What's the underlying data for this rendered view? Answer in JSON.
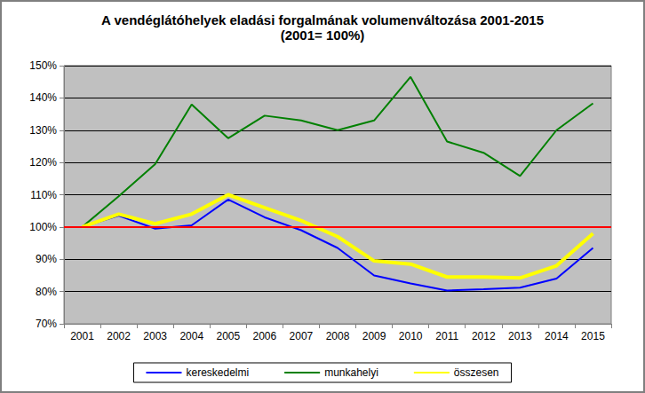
{
  "chart_data": {
    "type": "line",
    "title": "A vendéglátóhelyek eladási forgalmának volumenváltozása 2001-2015",
    "subtitle": "(2001= 100%)",
    "categories": [
      "2001",
      "2002",
      "2003",
      "2004",
      "2005",
      "2006",
      "2007",
      "2008",
      "2009",
      "2010",
      "2011",
      "2012",
      "2013",
      "2014",
      "2015"
    ],
    "series": [
      {
        "name": "kereskedelmi",
        "color": "#0000ff",
        "values": [
          100,
          103.5,
          99.5,
          100.5,
          108.5,
          103,
          99,
          93.5,
          85,
          82.5,
          80.3,
          80.7,
          81.2,
          84,
          93.5
        ]
      },
      {
        "name": "munkahelyi",
        "color": "#008000",
        "values": [
          100,
          109.5,
          119.5,
          138,
          127.5,
          134.5,
          133,
          130,
          133,
          146.5,
          126.5,
          123,
          115.8,
          130,
          138.3
        ]
      },
      {
        "name": "összesen",
        "color": "#ffff00",
        "values": [
          100,
          104,
          101,
          104,
          110,
          106,
          102,
          97,
          89.5,
          88.5,
          84.5,
          84.5,
          84.2,
          88,
          98
        ]
      }
    ],
    "baseline": {
      "value": 100,
      "color": "#ff0000"
    },
    "ylim": [
      70,
      150
    ],
    "yticks": [
      {
        "value": 70,
        "label": "70%"
      },
      {
        "value": 80,
        "label": "80%"
      },
      {
        "value": 90,
        "label": "90%"
      },
      {
        "value": 100,
        "label": "100%"
      },
      {
        "value": 110,
        "label": "110%"
      },
      {
        "value": 120,
        "label": "120%"
      },
      {
        "value": 130,
        "label": "130%"
      },
      {
        "value": 140,
        "label": "140%"
      },
      {
        "value": 150,
        "label": "150%"
      }
    ],
    "grid": true,
    "legend": "bottom"
  }
}
